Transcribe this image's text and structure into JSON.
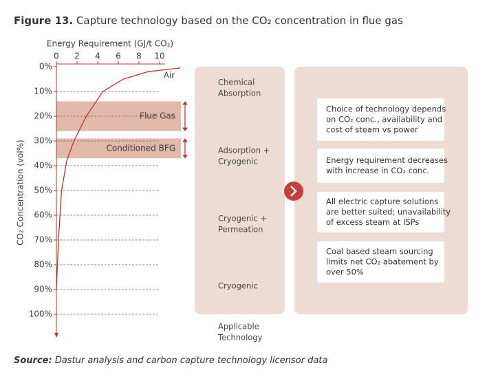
{
  "title_prefix": "Figure 13.",
  "title": "Capture technology based on the CO₂ concentration in flue gas",
  "chart_data": {
    "type": "line",
    "x_label": "Energy Requirement (GJ/t CO₂)",
    "y_label": "CO₂ Concentration (vol%)",
    "xlim": [
      0,
      12
    ],
    "xticks": [
      0,
      2,
      4,
      6,
      8,
      10
    ],
    "ylim": [
      0,
      100
    ],
    "y_inverted": true,
    "yticks": [
      {
        "value": 0,
        "label": "0%"
      },
      {
        "value": 10,
        "label": "10%"
      },
      {
        "value": 20,
        "label": "20%"
      },
      {
        "value": 30,
        "label": "30%"
      },
      {
        "value": 40,
        "label": "40%"
      },
      {
        "value": 50,
        "label": "50%"
      },
      {
        "value": 60,
        "label": "60%"
      },
      {
        "value": 70,
        "label": "70%"
      },
      {
        "value": 80,
        "label": "80%"
      },
      {
        "value": 90,
        "label": "90%"
      },
      {
        "value": 100,
        "label": "100%"
      }
    ],
    "grid": true,
    "color": "#b5362f",
    "x": [
      0,
      0.2,
      0.5,
      1,
      1.7,
      2.9,
      4.5,
      6.5,
      8.9,
      12
    ],
    "values": [
      90,
      70,
      50,
      38,
      30,
      20,
      10,
      5,
      2,
      0.5
    ],
    "annotation": "Air",
    "bands": [
      {
        "label": "Flue Gas",
        "range": [
          14,
          26
        ],
        "color": "#e2b8aa"
      },
      {
        "label": "Conditioned BFG",
        "range": [
          29,
          37
        ],
        "color": "#e2b8aa"
      }
    ]
  },
  "technologies": [
    {
      "lines": [
        "Chemical",
        "Absorption"
      ]
    },
    {
      "lines": [
        "Adsorption +",
        "Cryogenic"
      ]
    },
    {
      "lines": [
        "Cryogenic +",
        "Permeation"
      ]
    },
    {
      "lines": [
        "Cryogenic"
      ]
    }
  ],
  "technology_footer": [
    "Applicable",
    "Technology"
  ],
  "notes": [
    {
      "lines": [
        "Choice of technology depends",
        "on CO₂ conc., availability and",
        "cost of steam vs power"
      ]
    },
    {
      "lines": [
        "Energy requirement decreases",
        "with increase in CO₂ conc."
      ]
    },
    {
      "lines": [
        "All electric capture solutions",
        "are better suited; unavailability",
        "of excess steam at ISPs"
      ]
    },
    {
      "lines": [
        "Coal based steam sourcing",
        "limits net CO₂ abatement by",
        "over 50%"
      ]
    }
  ],
  "source_prefix": "Source:",
  "source": "Dastur analysis and carbon capture technology licensor data"
}
